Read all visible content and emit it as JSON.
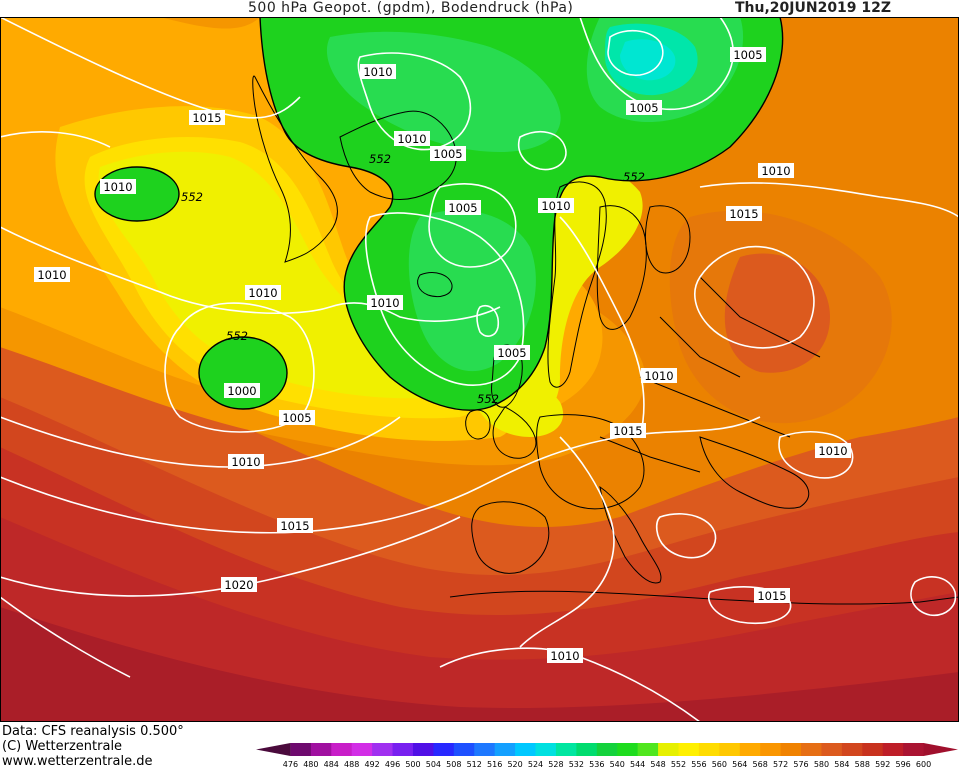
{
  "header": {
    "title": "500 hPa Geopot. (gpdm), Bodendruck (hPa)",
    "datetime": "Thu,20JUN2019 12Z"
  },
  "footer": {
    "data_source": "Data: CFS reanalysis 0.500°",
    "copyright": "(C) Wetterzentrale",
    "website": "www.wetterzentrale.de"
  },
  "scale": {
    "values": [
      "476",
      "480",
      "484",
      "488",
      "492",
      "496",
      "500",
      "504",
      "508",
      "512",
      "516",
      "520",
      "524",
      "528",
      "532",
      "536",
      "540",
      "544",
      "548",
      "552",
      "556",
      "560",
      "564",
      "568",
      "572",
      "576",
      "580",
      "584",
      "588",
      "592",
      "596",
      "600"
    ],
    "colors": [
      "#4a0a3c",
      "#6e0a6e",
      "#a010a0",
      "#c81ec8",
      "#d22ee6",
      "#a030f0",
      "#7820f0",
      "#5010e6",
      "#2828ff",
      "#1e50ff",
      "#1e78ff",
      "#14a0ff",
      "#00c8ff",
      "#00e0e0",
      "#00e6a0",
      "#00dc6e",
      "#14d23c",
      "#1edc1e",
      "#50e61e",
      "#e6f000",
      "#fff000",
      "#ffdc00",
      "#ffc800",
      "#ffaa00",
      "#fa9600",
      "#f08200",
      "#e66e14",
      "#dc5a1e",
      "#d2461e",
      "#c8321e",
      "#be1e28",
      "#aa1432",
      "#a0102d"
    ]
  },
  "map": {
    "colors": {
      "c548": "#1ed21e",
      "c544": "#28dc50",
      "c540": "#00e6aa",
      "c536": "#00e6d2",
      "c552": "#f0f000",
      "c556": "#ffe000",
      "c560": "#ffc800",
      "c564": "#ffaa00",
      "c568": "#f59600",
      "c572": "#eb8200",
      "c576": "#e6780a",
      "c580": "#dc5a1e",
      "c584": "#d2461e",
      "c588": "#c83223",
      "c592": "#be2828",
      "c596": "#aa1e28",
      "isobar": "#ffffff",
      "coast": "#000000"
    },
    "isobar_labels": [
      {
        "text": "1010"
      },
      {
        "text": "1005"
      },
      {
        "text": "1015"
      },
      {
        "text": "1010"
      },
      {
        "text": "1005"
      },
      {
        "text": "1005"
      },
      {
        "text": "1010"
      },
      {
        "text": "1010"
      },
      {
        "text": "1015"
      },
      {
        "text": "1010"
      },
      {
        "text": "1005"
      },
      {
        "text": "1010"
      },
      {
        "text": "1010"
      },
      {
        "text": "1010"
      },
      {
        "text": "1005"
      },
      {
        "text": "1000"
      },
      {
        "text": "1005"
      },
      {
        "text": "1010"
      },
      {
        "text": "1015"
      },
      {
        "text": "1015"
      },
      {
        "text": "1010"
      },
      {
        "text": "1020"
      },
      {
        "text": "1015"
      },
      {
        "text": "1010"
      },
      {
        "text": "1010"
      },
      {
        "text": "1010"
      }
    ],
    "geopot_labels": [
      {
        "text": "552"
      },
      {
        "text": "552"
      },
      {
        "text": "552"
      },
      {
        "text": "552"
      },
      {
        "text": "552"
      }
    ]
  }
}
